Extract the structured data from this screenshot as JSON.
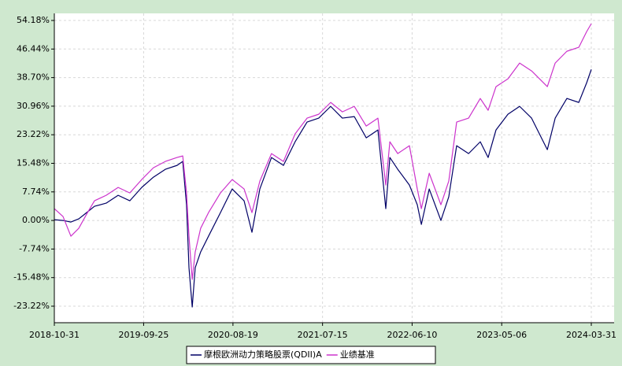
{
  "chart_data": {
    "type": "line",
    "x": [
      "2018-10-31",
      "2018-12-02",
      "2018-12-31",
      "2019-01-29",
      "2019-02-27",
      "2019-03-28",
      "2019-05-10",
      "2019-06-23",
      "2019-08-05",
      "2019-09-18",
      "2019-10-31",
      "2019-12-14",
      "2020-01-26",
      "2020-02-16",
      "2020-03-01",
      "2020-03-10",
      "2020-03-22",
      "2020-04-02",
      "2020-04-22",
      "2020-05-21",
      "2020-07-04",
      "2020-08-16",
      "2020-09-29",
      "2020-10-28",
      "2020-11-26",
      "2021-01-08",
      "2021-02-21",
      "2021-04-05",
      "2021-05-19",
      "2021-07-01",
      "2021-08-14",
      "2021-09-26",
      "2021-11-09",
      "2021-12-23",
      "2022-02-04",
      "2022-03-05",
      "2022-03-20",
      "2022-04-18",
      "2022-05-31",
      "2022-06-29",
      "2022-07-14",
      "2022-08-12",
      "2022-09-24",
      "2022-10-23",
      "2022-11-21",
      "2023-01-04",
      "2023-02-16",
      "2023-03-17",
      "2023-04-15",
      "2023-05-29",
      "2023-07-11",
      "2023-08-24",
      "2023-09-22",
      "2023-10-21",
      "2023-11-19",
      "2024-01-01",
      "2024-02-14",
      "2024-03-14",
      "2024-03-31"
    ],
    "series": [
      {
        "name": "摩根欧洲动力策略股票(QDII)A",
        "color": "#000066",
        "values": [
          0.21,
          0,
          -0.43,
          0.43,
          2.13,
          3.84,
          4.69,
          6.82,
          5.33,
          8.95,
          11.73,
          13.86,
          14.92,
          15.99,
          4.26,
          -12.79,
          -23.45,
          -12.79,
          -8.53,
          -4.26,
          2.13,
          8.53,
          5.33,
          -3.2,
          8.53,
          17.06,
          14.92,
          21.32,
          26.65,
          27.72,
          30.91,
          27.72,
          28.14,
          22.39,
          24.52,
          3.2,
          17.06,
          13.86,
          9.59,
          4.26,
          -1.07,
          8.53,
          0,
          6.4,
          20.25,
          18.12,
          21.32,
          17.06,
          24.52,
          28.78,
          30.91,
          27.72,
          23.45,
          19.19,
          27.72,
          33.05,
          31.98,
          37.31,
          40.93
        ]
      },
      {
        "name": "业绩基准",
        "color": "#cc33cc",
        "values": [
          3.2,
          1.07,
          -4.26,
          -2.13,
          1.71,
          5.33,
          6.82,
          8.95,
          7.46,
          11.09,
          14.28,
          15.99,
          17.06,
          17.48,
          7.46,
          -4.26,
          -15.99,
          -8.53,
          -2.13,
          2.13,
          7.46,
          11.09,
          8.53,
          2.13,
          10.66,
          18.12,
          15.99,
          23.45,
          27.72,
          28.78,
          31.98,
          29.42,
          30.91,
          25.58,
          27.72,
          9.59,
          21.32,
          18.12,
          20.25,
          8.53,
          3.2,
          12.79,
          4.26,
          10.66,
          26.65,
          27.72,
          33.05,
          29.85,
          36.25,
          38.38,
          42.64,
          40.51,
          38.38,
          36.25,
          42.64,
          45.84,
          46.91,
          51.17,
          53.3
        ]
      }
    ],
    "xlim": [
      "2018-10-31",
      "2024-03-31"
    ],
    "xticks": [
      "2018-10-31",
      "2019-09-25",
      "2020-08-19",
      "2021-07-15",
      "2022-06-10",
      "2023-05-06",
      "2024-03-31"
    ],
    "ylim": [
      -27.7,
      56.1
    ],
    "yticks": [
      {
        "value": 54.18,
        "label": "54.18%"
      },
      {
        "value": 46.44,
        "label": "46.44%"
      },
      {
        "value": 38.7,
        "label": "38.70%"
      },
      {
        "value": 30.96,
        "label": "30.96%"
      },
      {
        "value": 23.22,
        "label": "23.22%"
      },
      {
        "value": 15.48,
        "label": "15.48%"
      },
      {
        "value": 7.74,
        "label": "7.74%"
      },
      {
        "value": 0,
        "label": "0.00%"
      },
      {
        "value": -7.74,
        "label": "-7.74%"
      },
      {
        "value": -15.48,
        "label": "-15.48%"
      },
      {
        "value": -23.22,
        "label": "-23.22%"
      }
    ],
    "grid": true,
    "legend": "bottom"
  }
}
